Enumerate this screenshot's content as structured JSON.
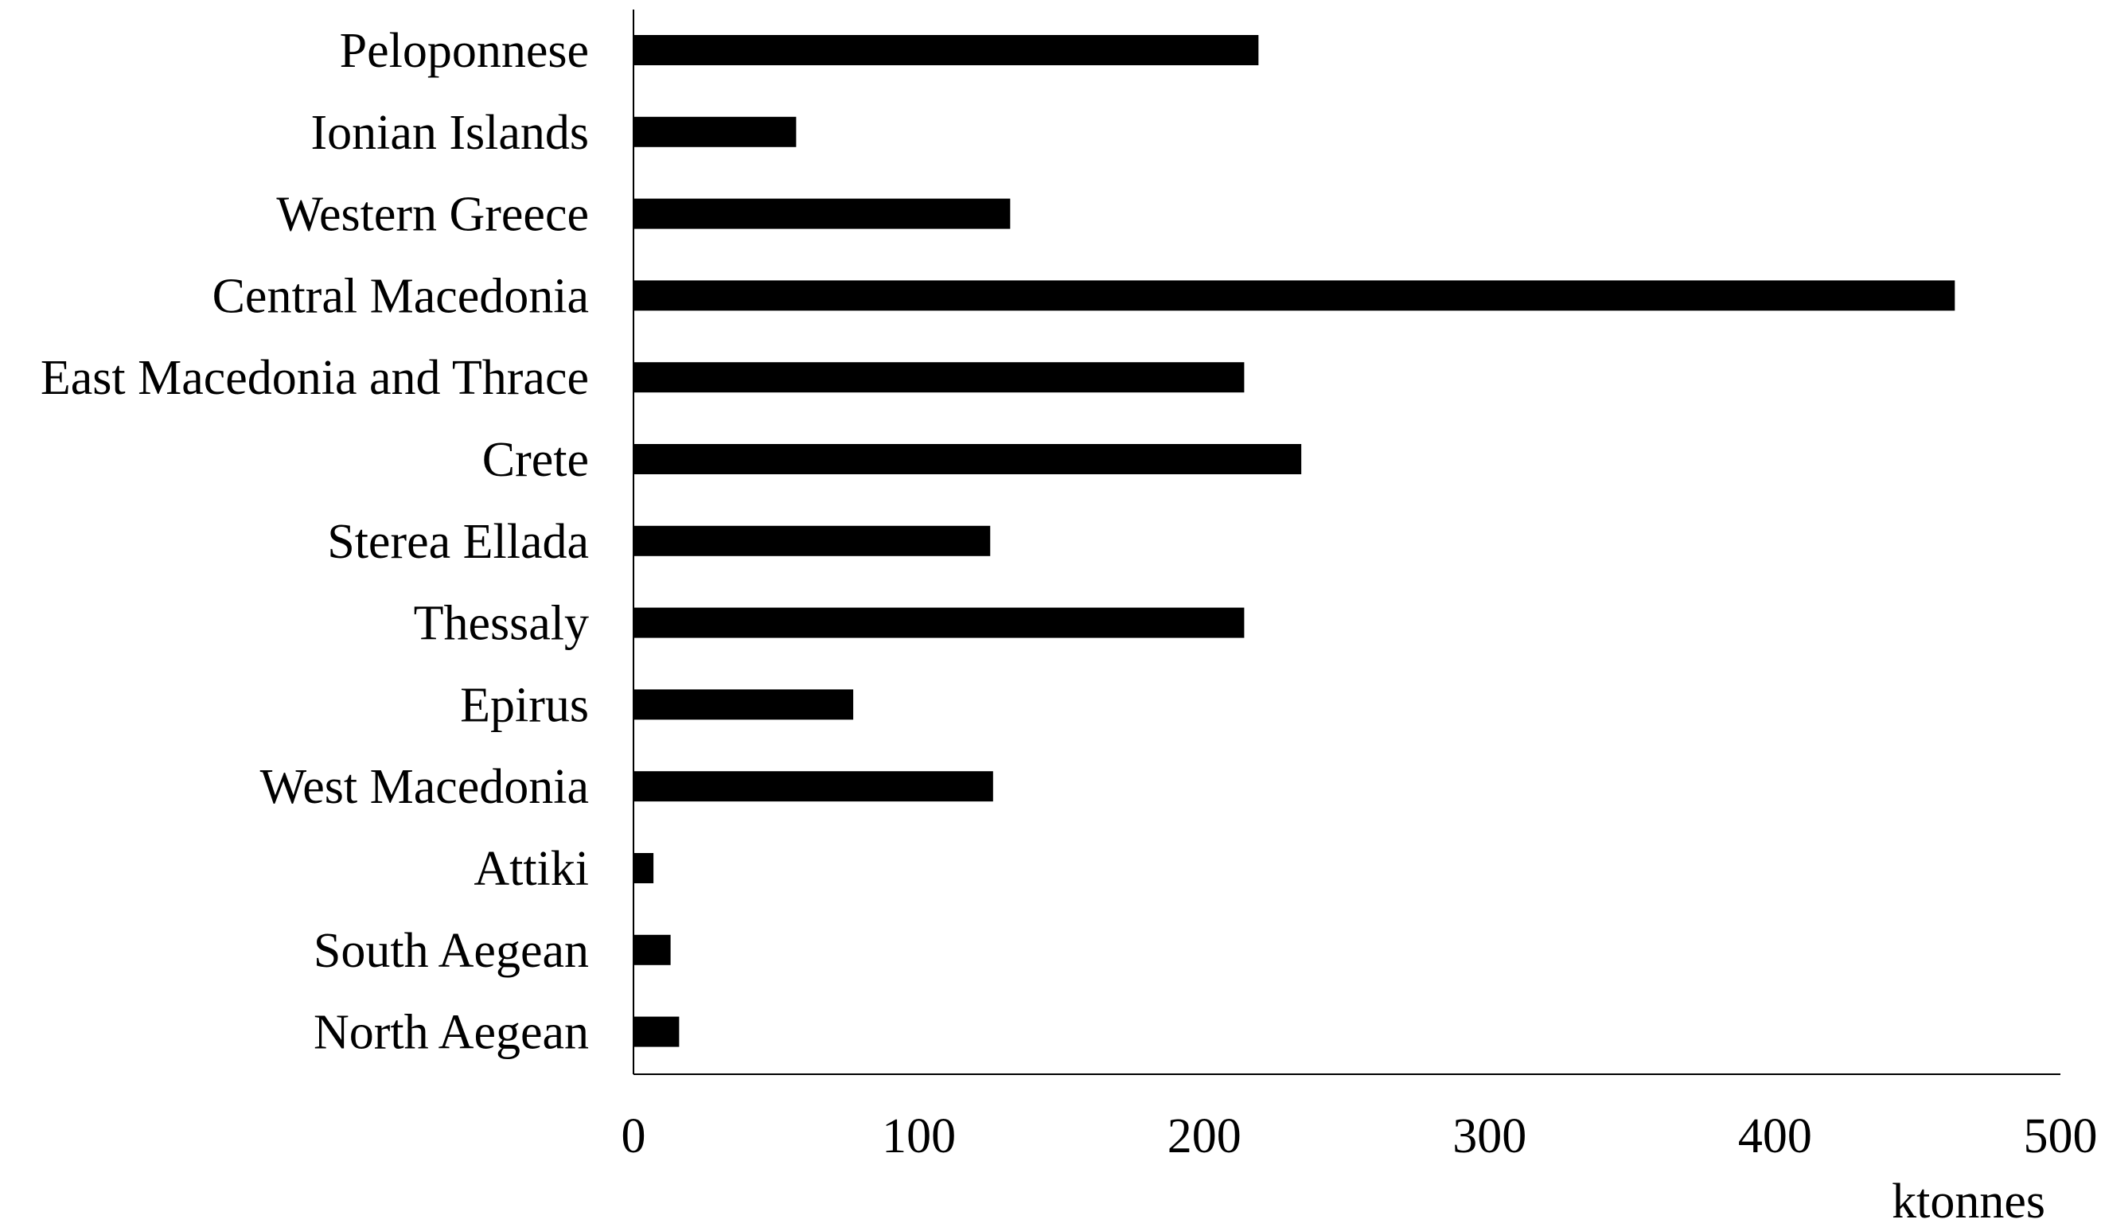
{
  "chart_data": {
    "type": "bar",
    "orientation": "horizontal",
    "categories": [
      "Peloponnese",
      "Ionian Islands",
      "Western Greece",
      "Central Macedonia",
      "East Macedonia and Thrace",
      "Crete",
      "Sterea Ellada",
      "Thessaly",
      "Epirus",
      "West Macedonia",
      "Attiki",
      "South Aegean",
      "North Aegean"
    ],
    "values": [
      219,
      57,
      132,
      463,
      214,
      234,
      125,
      214,
      77,
      126,
      7,
      13,
      16
    ],
    "x_ticks": [
      "0",
      "100",
      "200",
      "300",
      "400",
      "500"
    ],
    "xlim": [
      0,
      500
    ],
    "xlabel": "ktonnes",
    "title": "",
    "grid": false,
    "legend": "none",
    "bar_color": "#000000"
  }
}
